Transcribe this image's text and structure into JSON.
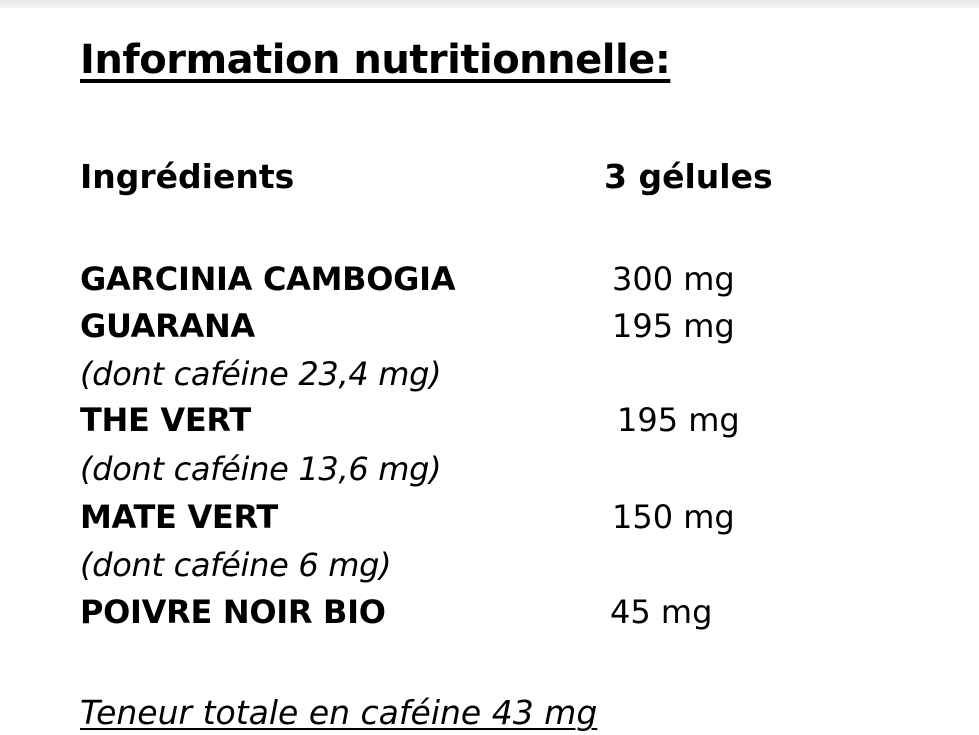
{
  "title": "Information nutritionnelle:",
  "headers": {
    "ingredients": "Ingrédients",
    "serving": "3 gélules"
  },
  "rows": [
    {
      "name": "GARCINIA CAMBOGIA",
      "value": "300 mg"
    },
    {
      "name": "GUARANA",
      "value": "195 mg",
      "note": "(dont caféine  23,4 mg)"
    },
    {
      "name": "THE VERT",
      "value": "195 mg",
      "note": "(dont caféine 13,6 mg)"
    },
    {
      "name": "MATE VERT",
      "value": "150 mg",
      "note": "(dont caféine  6 mg)"
    },
    {
      "name": "POIVRE NOIR BIO",
      "value": "45 mg"
    }
  ],
  "total": "Teneur totale en caféine 43 mg"
}
